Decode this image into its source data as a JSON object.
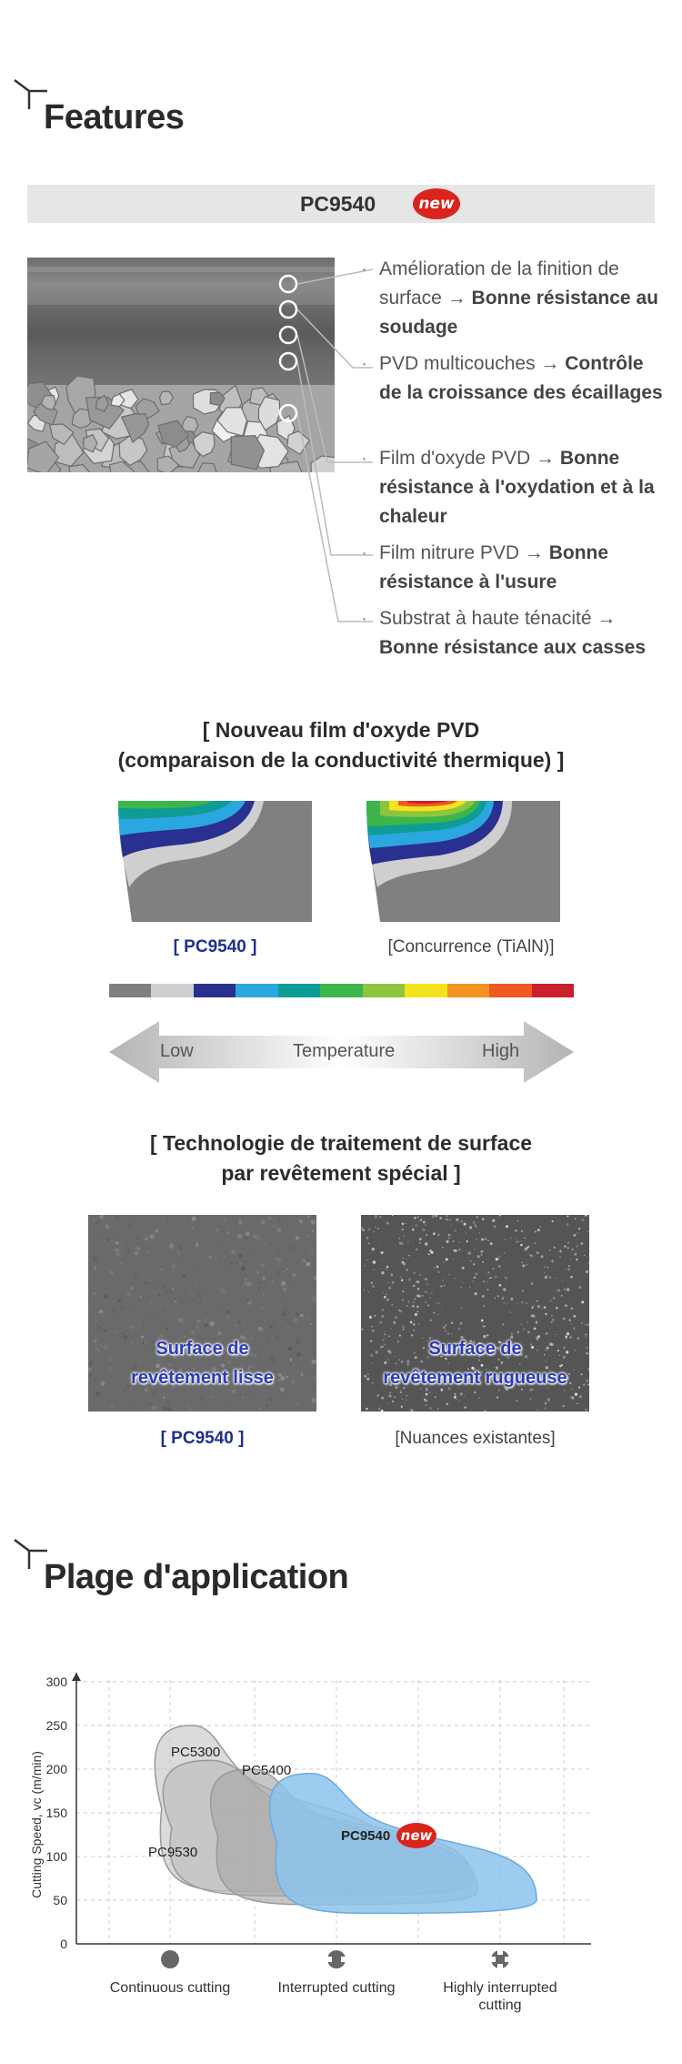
{
  "features_section": {
    "title": "Features",
    "grade": "PC9540",
    "new_badge": "new",
    "items": [
      {
        "plain": "Amélioration de la finition de surface → ",
        "bold": "Bonne résistance au soudage"
      },
      {
        "plain": "PVD multicouches → ",
        "bold": "Contrôle de la croissance des écaillages"
      },
      {
        "plain": "Film d'oxyde PVD → ",
        "bold": "Bonne résistance à l'oxydation et à la chaleur"
      },
      {
        "plain": "Film nitrure PVD → ",
        "bold": "Bonne résistance à l'usure"
      },
      {
        "plain": "Substrat à haute ténacité → ",
        "bold": "Bonne résistance aux casses"
      }
    ]
  },
  "thermal": {
    "title_line1": "[ Nouveau film d'oxyde PVD",
    "title_line2": "(comparaison de la conductivité thermique) ]",
    "left_caption": "[ PC9540 ]",
    "right_caption": "[Concurrence (TiAlN)]",
    "scale_colors": [
      "#808080",
      "#cfcfcf",
      "#2a3090",
      "#2ba7df",
      "#0e9c96",
      "#3db54a",
      "#8cc63e",
      "#f2e41c",
      "#f39321",
      "#ee5a24",
      "#c8202c"
    ],
    "low_label": "Low",
    "mid_label": "Temperature",
    "high_label": "High"
  },
  "surface": {
    "title_line1": "[ Technologie de traitement de surface",
    "title_line2": "par revêtement spécial ]",
    "left_img_line1": "Surface de",
    "left_img_line2": "revêtement lisse",
    "right_img_line1": "Surface de",
    "right_img_line2": "revêtement rugueuse",
    "left_caption": "[ PC9540 ]",
    "right_caption": "[Nuances existantes]"
  },
  "application_section": {
    "title": "Plage d'application"
  },
  "chart_data": {
    "type": "area",
    "ylabel": "Cutting Speed, vc (m/min)",
    "ylim": [
      0,
      300
    ],
    "yticks": [
      0,
      50,
      100,
      150,
      200,
      250,
      300
    ],
    "categories": [
      "Continuous cutting",
      "Interrupted cutting",
      "Highly interrupted cutting"
    ],
    "category_icons": [
      "continuous-cutting-icon",
      "interrupted-cutting-icon",
      "highly-interrupted-cutting-icon"
    ],
    "grid": true,
    "series": [
      {
        "name": "PC5300",
        "color": "#c8c8c8",
        "approx_range": {
          "speed_min": 60,
          "speed_max": 250
        }
      },
      {
        "name": "PC9530",
        "color": "#bdbdbd",
        "approx_range": {
          "speed_min": 55,
          "speed_max": 210
        }
      },
      {
        "name": "PC5400",
        "color": "#a8a8a8",
        "approx_range": {
          "speed_min": 45,
          "speed_max": 200
        }
      },
      {
        "name": "PC9540",
        "color": "#8cc3ec",
        "approx_range": {
          "speed_min": 35,
          "speed_max": 195
        },
        "badge": "new"
      }
    ]
  }
}
